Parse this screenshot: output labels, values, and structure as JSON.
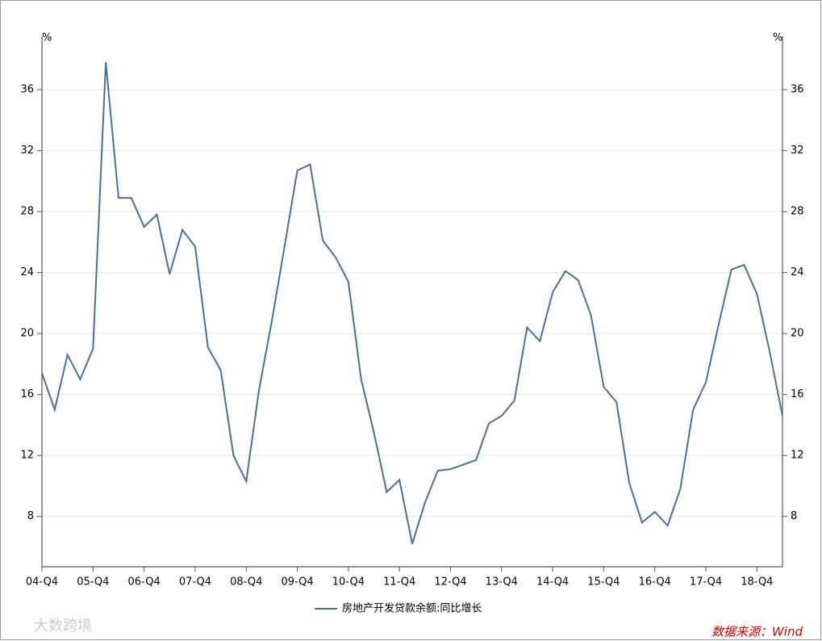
{
  "chart_data": {
    "type": "line",
    "y_unit": "%",
    "y2_unit": "%",
    "categories": [
      "04-Q4",
      null,
      null,
      null,
      "05-Q4",
      null,
      null,
      null,
      "06-Q4",
      null,
      null,
      null,
      "07-Q4",
      null,
      null,
      null,
      "08-Q4",
      null,
      null,
      null,
      "09-Q4",
      null,
      null,
      null,
      "10-Q4",
      null,
      null,
      null,
      "11-Q4",
      null,
      null,
      null,
      "12-Q4",
      null,
      null,
      null,
      "13-Q4",
      null,
      null,
      null,
      "14-Q4",
      null,
      null,
      null,
      "15-Q4",
      null,
      null,
      null,
      "16-Q4",
      null,
      null,
      null,
      "17-Q4",
      null,
      null,
      null,
      "18-Q4",
      null,
      null
    ],
    "series": [
      {
        "name": "房地产开发贷款余额:同比增长",
        "color": "#4a6f9c",
        "values": [
          17.4,
          15.0,
          18.6,
          17.0,
          19.0,
          37.8,
          28.9,
          28.9,
          27.0,
          27.8,
          23.9,
          26.8,
          25.7,
          19.1,
          17.6,
          12.0,
          10.3,
          16.3,
          20.8,
          25.7,
          30.7,
          31.1,
          26.1,
          25.0,
          23.4,
          17.0,
          13.5,
          9.6,
          10.4,
          6.2,
          8.9,
          11.0,
          11.1,
          11.4,
          11.7,
          14.1,
          14.6,
          15.6,
          20.4,
          19.5,
          22.7,
          24.1,
          23.5,
          21.2,
          16.5,
          15.5,
          10.2,
          7.6,
          8.3,
          7.4,
          9.8,
          15.0,
          16.8,
          20.6,
          24.2,
          24.5,
          22.6,
          18.8,
          14.6
        ]
      }
    ],
    "ylim": [
      4.7,
      39.5
    ],
    "yticks": [
      8,
      12,
      16,
      20,
      24,
      28,
      32,
      36
    ],
    "y2lim": [
      4.7,
      39.5
    ],
    "y2ticks": [
      8,
      12,
      16,
      20,
      24,
      28,
      32,
      36
    ],
    "grid": true,
    "source": "数据来源：Wind",
    "watermark": "大数跨境"
  }
}
